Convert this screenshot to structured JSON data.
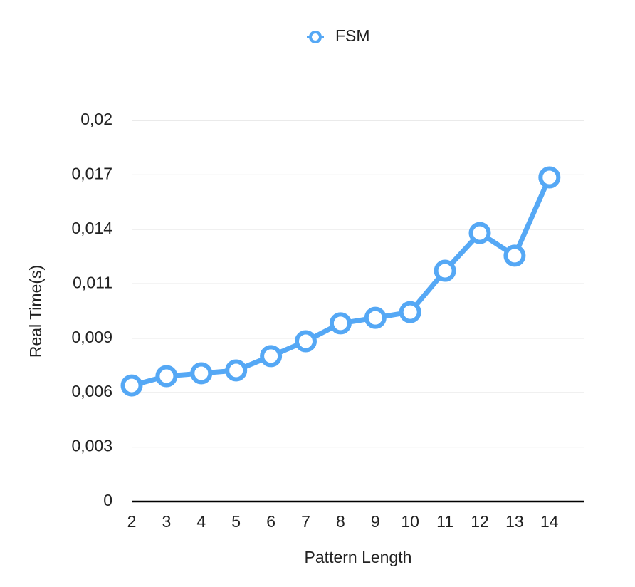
{
  "chart_data": {
    "type": "line",
    "legend": "top",
    "x_label": "Pattern Length",
    "y_label": "Real Time(s)",
    "categories": [
      "2",
      "3",
      "4",
      "5",
      "6",
      "7",
      "8",
      "9",
      "10",
      "11",
      "12",
      "13",
      "14"
    ],
    "series": [
      {
        "name": "FSM",
        "color": "#55a8f5",
        "values": [
          0.00609,
          0.00658,
          0.00673,
          0.00688,
          0.00763,
          0.00841,
          0.00935,
          0.00964,
          0.00994,
          0.01211,
          0.01409,
          0.0129,
          0.01701
        ]
      }
    ],
    "ylim": [
      0,
      0.02
    ],
    "yticks": [
      0,
      {
        "value": 0.002857,
        "label": "0,003"
      },
      {
        "value": 0.005714,
        "label": "0,006"
      },
      {
        "value": 0.008571,
        "label": "0,009"
      },
      {
        "value": 0.011429,
        "label": "0,011"
      },
      {
        "value": 0.014286,
        "label": "0,014"
      },
      {
        "value": 0.017143,
        "label": "0,017"
      },
      {
        "value": 0.02,
        "label": "0,02"
      }
    ],
    "grid": true
  }
}
